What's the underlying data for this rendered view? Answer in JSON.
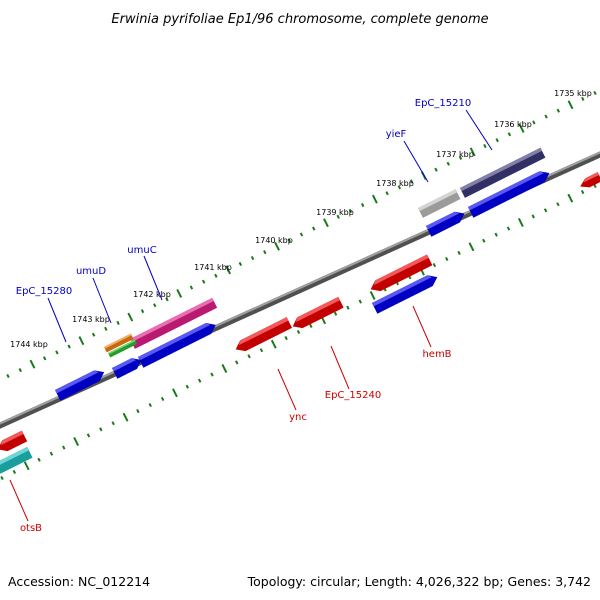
{
  "title": "Erwinia pyrifoliae Ep1/96 chromosome, complete genome",
  "footer": {
    "accession": "Accession: NC_012214",
    "topology": "Topology: circular; Length: 4,026,322 bp; Genes: 3,742"
  },
  "colors": {
    "backbone": "#808080",
    "tick": "#1a7a1a",
    "label_plus": "#0000c0",
    "label_minus": "#cc0000"
  },
  "ticks": [
    {
      "label": "1735 kbp"
    },
    {
      "label": "1736 kbp"
    },
    {
      "label": "1737 kbp"
    },
    {
      "label": "1738 kbp"
    },
    {
      "label": "1739 kbp"
    },
    {
      "label": "1740 kbp"
    },
    {
      "label": "1741 kbp"
    },
    {
      "label": "1742 kbp"
    },
    {
      "label": "1743 kbp"
    },
    {
      "label": "1744 kbp"
    }
  ],
  "gene_labels": [
    {
      "text": "EpC_15210",
      "strand": "plus"
    },
    {
      "text": "yieF",
      "strand": "plus"
    },
    {
      "text": "umuC",
      "strand": "plus"
    },
    {
      "text": "umuD",
      "strand": "plus"
    },
    {
      "text": "EpC_15280",
      "strand": "plus"
    },
    {
      "text": "hemB",
      "strand": "minus"
    },
    {
      "text": "EpC_15240",
      "strand": "minus"
    },
    {
      "text": "ync",
      "strand": "minus"
    },
    {
      "text": "otsB",
      "strand": "minus"
    }
  ],
  "features": [
    {
      "name": "EpC_15210-cds",
      "color": "#3b3b7a"
    },
    {
      "name": "EpC_15210-gene",
      "color": "#0000ee"
    },
    {
      "name": "yieF-cds",
      "color": "#bdbdbd"
    },
    {
      "name": "yieF-gene",
      "color": "#0000ee"
    },
    {
      "name": "umuC-cds",
      "color": "#e0208a"
    },
    {
      "name": "umuC-gene",
      "color": "#0000ee"
    },
    {
      "name": "umuD-cds-a",
      "color": "#f08010"
    },
    {
      "name": "umuD-cds-b",
      "color": "#30c030"
    },
    {
      "name": "umuD-gene",
      "color": "#0000ee"
    },
    {
      "name": "EpC_15280-gene",
      "color": "#0000ee"
    },
    {
      "name": "hemB-cds",
      "color": "#ee0000"
    },
    {
      "name": "hemB-gene",
      "color": "#0000ee"
    },
    {
      "name": "EpC_15240-cds",
      "color": "#ee0000"
    },
    {
      "name": "ync-cds",
      "color": "#ee0000"
    },
    {
      "name": "edge-gene-right",
      "color": "#ee0000"
    },
    {
      "name": "otsB-cds",
      "color": "#ee0000"
    },
    {
      "name": "edge-cds-left",
      "color": "#20c0c0"
    }
  ]
}
